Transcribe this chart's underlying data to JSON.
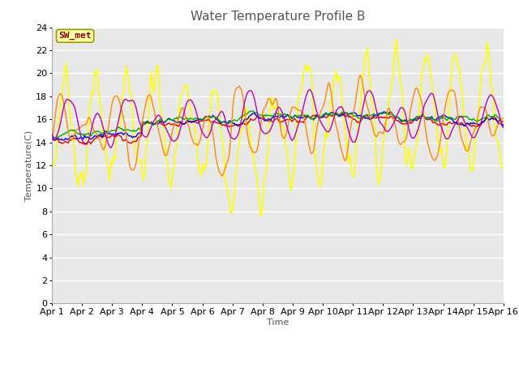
{
  "title": "Water Temperature Profile B",
  "xlabel": "Time",
  "ylabel": "Temperature(C)",
  "ylim": [
    0,
    24
  ],
  "yticks": [
    0,
    2,
    4,
    6,
    8,
    10,
    12,
    14,
    16,
    18,
    20,
    22,
    24
  ],
  "x_labels": [
    "Apr 1",
    "Apr 2",
    "Apr 3",
    "Apr 4",
    "Apr 5",
    "Apr 6",
    "Apr 7",
    "Apr 8",
    "Apr 9",
    "Apr 10",
    "Apr 11",
    "Apr 12",
    "Apr 13",
    "Apr 14",
    "Apr 15",
    "Apr 16"
  ],
  "annotation_text": "SW_met",
  "annotation_bg": "#ffffaa",
  "annotation_border": "#999900",
  "annotation_text_color": "#880000",
  "series": {
    "0cm": {
      "color": "#dd0000",
      "lw": 1.0
    },
    "+5cm": {
      "color": "#0000dd",
      "lw": 1.0
    },
    "+10cm": {
      "color": "#00aa00",
      "lw": 1.0
    },
    "+30cm": {
      "color": "#ff8800",
      "lw": 1.0
    },
    "+50cm": {
      "color": "#ffff00",
      "lw": 1.2
    },
    "TC_temp11": {
      "color": "#bb00bb",
      "lw": 1.0
    }
  },
  "bg_color": "#e8e8e8",
  "plot_bg": "#e8e8e8",
  "fig_bg": "#ffffff",
  "title_fontsize": 11,
  "label_fontsize": 8,
  "tick_fontsize": 8,
  "grid_color": "#ffffff",
  "grid_lw": 1.0
}
